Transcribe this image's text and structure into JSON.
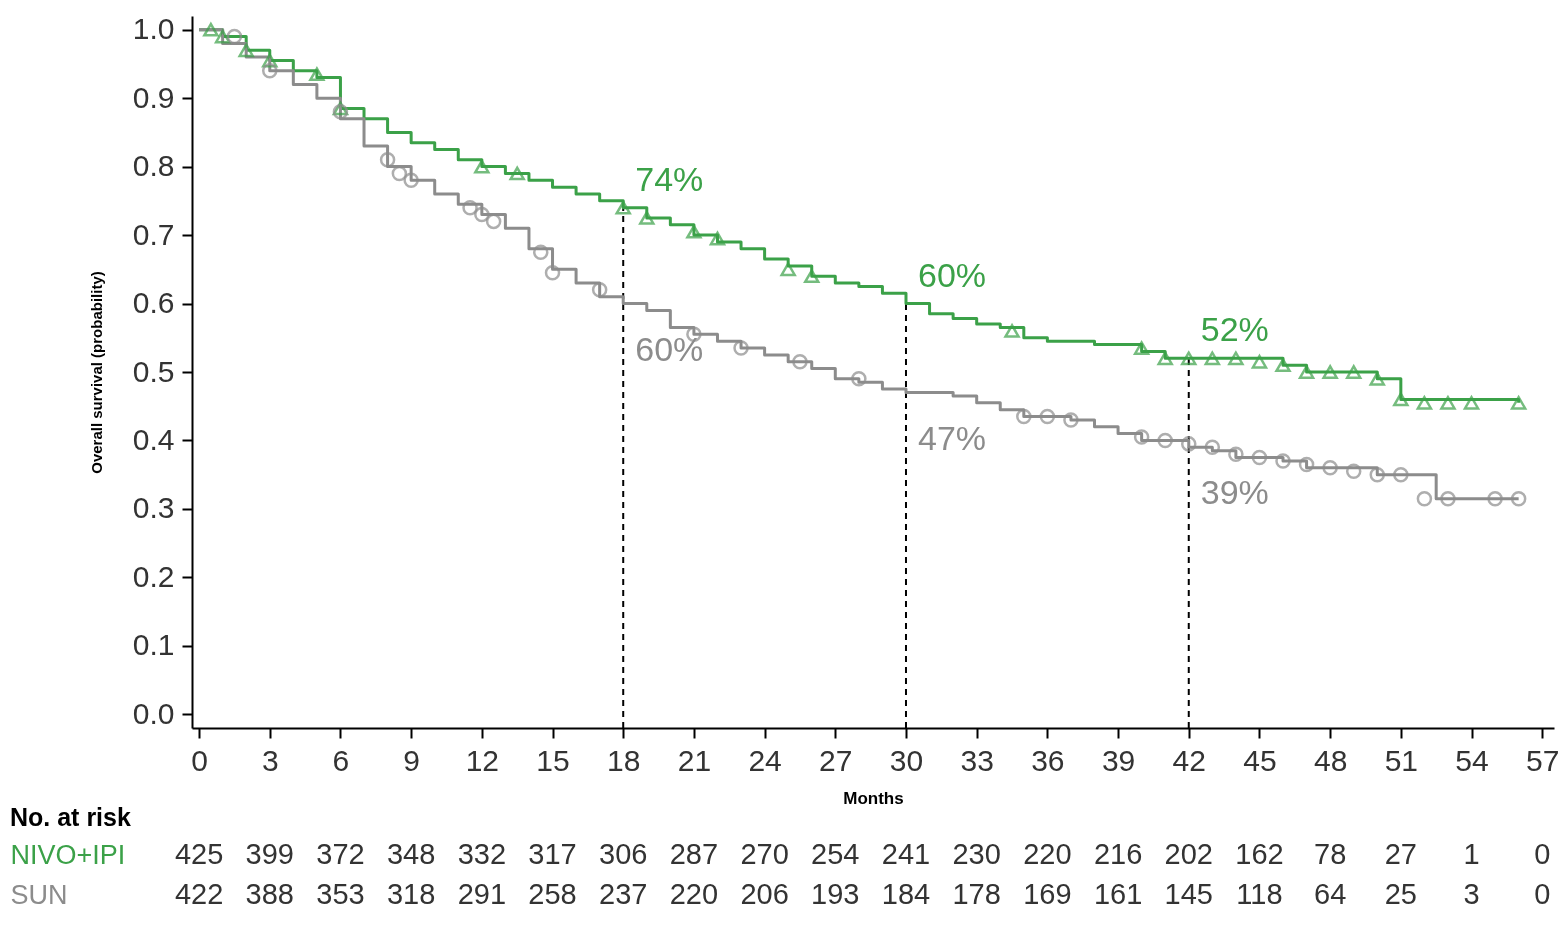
{
  "chart_data": {
    "type": "step",
    "xlabel": "Months",
    "ylabel": "Overall survival (probability)",
    "xlim": [
      -0.3,
      57.5
    ],
    "xticks": [
      0,
      3,
      6,
      9,
      12,
      15,
      18,
      21,
      24,
      27,
      30,
      33,
      36,
      39,
      42,
      45,
      48,
      51,
      54,
      57
    ],
    "ylim": [
      -0.02,
      1.02
    ],
    "yticks": [
      {
        "value": 0,
        "label": "0.0"
      },
      0.1,
      0.2,
      0.3,
      0.4,
      0.5,
      0.6,
      0.7,
      0.8,
      0.9,
      {
        "value": 1,
        "label": "1.0"
      }
    ],
    "series": [
      {
        "name": "NIVO+IPI",
        "type": "step",
        "color": "#3ba148",
        "x": [
          0,
          1,
          2,
          3,
          4,
          5,
          6,
          7,
          8,
          9,
          10,
          11,
          12,
          13,
          14,
          15,
          16,
          17,
          18,
          19,
          20,
          21,
          22,
          23,
          24,
          25,
          26,
          27,
          28,
          29,
          30,
          31,
          32,
          33,
          34,
          35,
          36,
          38,
          40,
          41,
          44,
          46,
          47,
          50,
          51,
          56
        ],
        "values": [
          1.0,
          0.99,
          0.97,
          0.955,
          0.94,
          0.93,
          0.885,
          0.87,
          0.85,
          0.835,
          0.825,
          0.81,
          0.8,
          0.79,
          0.78,
          0.77,
          0.76,
          0.75,
          0.74,
          0.725,
          0.715,
          0.7,
          0.69,
          0.68,
          0.665,
          0.655,
          0.64,
          0.63,
          0.625,
          0.615,
          0.6,
          0.585,
          0.578,
          0.57,
          0.565,
          0.55,
          0.545,
          0.54,
          0.53,
          0.52,
          0.52,
          0.51,
          0.5,
          0.49,
          0.46,
          0.455
        ]
      },
      {
        "name": "SUN",
        "type": "step",
        "color": "#8c8c8c",
        "x": [
          0,
          1,
          2,
          3,
          4,
          5,
          6,
          7,
          8,
          9,
          10,
          11,
          12,
          13,
          14,
          15,
          16,
          17,
          18,
          19,
          20,
          21,
          22,
          23,
          24,
          25,
          26,
          27,
          28,
          29,
          30,
          32,
          33,
          34,
          35,
          37,
          38,
          39,
          40,
          42,
          43,
          44,
          46,
          47,
          50,
          52.5,
          56
        ],
        "values": [
          1.0,
          0.98,
          0.96,
          0.94,
          0.92,
          0.9,
          0.87,
          0.83,
          0.8,
          0.78,
          0.76,
          0.745,
          0.73,
          0.71,
          0.68,
          0.65,
          0.63,
          0.61,
          0.6,
          0.59,
          0.565,
          0.555,
          0.545,
          0.535,
          0.525,
          0.515,
          0.505,
          0.49,
          0.485,
          0.475,
          0.47,
          0.465,
          0.455,
          0.445,
          0.435,
          0.43,
          0.42,
          0.41,
          0.4,
          0.39,
          0.385,
          0.375,
          0.37,
          0.36,
          0.35,
          0.315,
          0.315
        ]
      },
      {
        "type": "scatter",
        "marker": "triangle",
        "color": "#3ba148",
        "x": [
          0.5,
          1,
          2,
          3,
          5,
          6,
          12,
          13.5,
          18,
          19,
          21,
          22,
          25,
          26,
          34.5,
          40,
          41,
          42,
          43,
          44,
          45,
          46,
          47,
          48,
          49,
          50,
          51,
          52,
          53,
          54,
          56
        ],
        "values": [
          1.0,
          0.99,
          0.97,
          0.955,
          0.935,
          0.885,
          0.8,
          0.79,
          0.74,
          0.725,
          0.705,
          0.695,
          0.65,
          0.64,
          0.56,
          0.535,
          0.52,
          0.52,
          0.52,
          0.52,
          0.515,
          0.51,
          0.5,
          0.5,
          0.5,
          0.49,
          0.46,
          0.455,
          0.455,
          0.455,
          0.455
        ]
      },
      {
        "type": "scatter",
        "marker": "circle",
        "color": "#8c8c8c",
        "x": [
          1.5,
          3,
          6,
          8,
          8.5,
          9,
          11.5,
          12,
          12.5,
          14.5,
          15,
          17,
          21,
          23,
          25.5,
          28,
          35,
          36,
          37,
          40,
          41,
          42,
          43,
          44,
          45,
          46,
          47,
          48,
          49,
          50,
          51,
          52,
          53,
          55,
          56
        ],
        "values": [
          0.99,
          0.94,
          0.88,
          0.81,
          0.79,
          0.78,
          0.74,
          0.73,
          0.72,
          0.675,
          0.645,
          0.62,
          0.555,
          0.535,
          0.515,
          0.49,
          0.435,
          0.435,
          0.43,
          0.405,
          0.4,
          0.395,
          0.39,
          0.38,
          0.375,
          0.37,
          0.365,
          0.36,
          0.355,
          0.35,
          0.35,
          0.315,
          0.315,
          0.315,
          0.315
        ]
      }
    ],
    "ref_lines": [
      {
        "axis": "x",
        "value": 18,
        "line_style": "dashed",
        "color": "#000000"
      },
      {
        "axis": "x",
        "value": 30,
        "line_style": "dashed",
        "color": "#000000"
      },
      {
        "axis": "x",
        "value": 42,
        "line_style": "dashed",
        "color": "#000000"
      }
    ],
    "annotations": [
      "No. at risk",
      "425 399 372 348 332 317 306 287 270 254 241 230 220 216 202 162 78 27 1 0",
      "422 388 353 318 291 258 237 220 206 193 184 178 169 161 145 118 64 25 3 0",
      {
        "text": "74%",
        "x": 18,
        "y": 0.74
      },
      {
        "text": "60%",
        "x": 18,
        "y": 0.6
      },
      {
        "text": "60%",
        "x": 30,
        "y": 0.6
      },
      {
        "text": "47%",
        "x": 30,
        "y": 0.47
      },
      {
        "text": "52%",
        "x": 42,
        "y": 0.52
      },
      {
        "text": "39%",
        "x": 42,
        "y": 0.39
      }
    ]
  }
}
